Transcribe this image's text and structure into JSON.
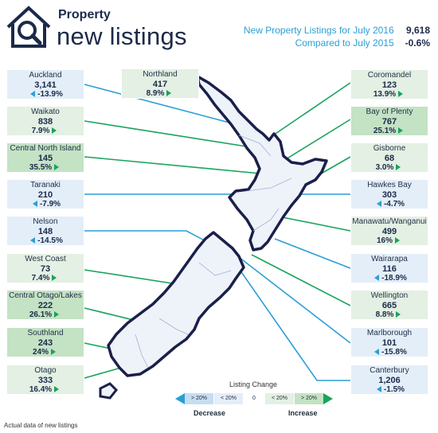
{
  "header": {
    "title_line1": "Property",
    "title_line2": "new listings",
    "summary_label_1": "New Property Listings for July 2016",
    "summary_value_1": "9,618",
    "summary_label_2": "Compared to July 2015",
    "summary_value_2": "-0.6%"
  },
  "regions": [
    {
      "name": "Auckland",
      "count": "3,141",
      "change": "-13.9%",
      "dir": "down"
    },
    {
      "name": "Waikato",
      "count": "838",
      "change": "7.9%",
      "dir": "up"
    },
    {
      "name": "Central North Island",
      "count": "145",
      "change": "35.5%",
      "dir": "up"
    },
    {
      "name": "Taranaki",
      "count": "210",
      "change": "-7.9%",
      "dir": "down"
    },
    {
      "name": "Nelson",
      "count": "148",
      "change": "-14.5%",
      "dir": "down"
    },
    {
      "name": "West Coast",
      "count": "73",
      "change": "7.4%",
      "dir": "up"
    },
    {
      "name": "Central Otago/Lakes",
      "count": "222",
      "change": "26.1%",
      "dir": "up"
    },
    {
      "name": "Southland",
      "count": "243",
      "change": "24%",
      "dir": "up"
    },
    {
      "name": "Otago",
      "count": "333",
      "change": "16.4%",
      "dir": "up"
    },
    {
      "name": "Northland",
      "count": "417",
      "change": "8.9%",
      "dir": "up"
    },
    {
      "name": "Coromandel",
      "count": "123",
      "change": "13.9%",
      "dir": "up"
    },
    {
      "name": "Bay of Plenty",
      "count": "767",
      "change": "25.1%",
      "dir": "up"
    },
    {
      "name": "Gisborne",
      "count": "68",
      "change": "3.0%",
      "dir": "up"
    },
    {
      "name": "Hawkes Bay",
      "count": "303",
      "change": "-4.7%",
      "dir": "down"
    },
    {
      "name": "Manawatu/Wanganui",
      "count": "499",
      "change": "16%",
      "dir": "up"
    },
    {
      "name": "Wairarapa",
      "count": "116",
      "change": "-18.9%",
      "dir": "down"
    },
    {
      "name": "Wellington",
      "count": "665",
      "change": "8.8%",
      "dir": "up"
    },
    {
      "name": "Marlborough",
      "count": "101",
      "change": "-15.8%",
      "dir": "down"
    },
    {
      "name": "Canterbury",
      "count": "1,206",
      "change": "-1.5%",
      "dir": "down"
    }
  ],
  "legend": {
    "title": "Listing Change",
    "items": [
      "> 20%",
      "< 20%",
      "0",
      "< 20%",
      "> 20%"
    ],
    "decrease_label": "Decrease",
    "increase_label": "Increase"
  },
  "footnote": "Actual data of new listings",
  "colors": {
    "decrease": "#2a9fd6",
    "increase": "#1aa35b",
    "map_outline": "#1b1f4a",
    "map_fill": "#eef3fa"
  }
}
